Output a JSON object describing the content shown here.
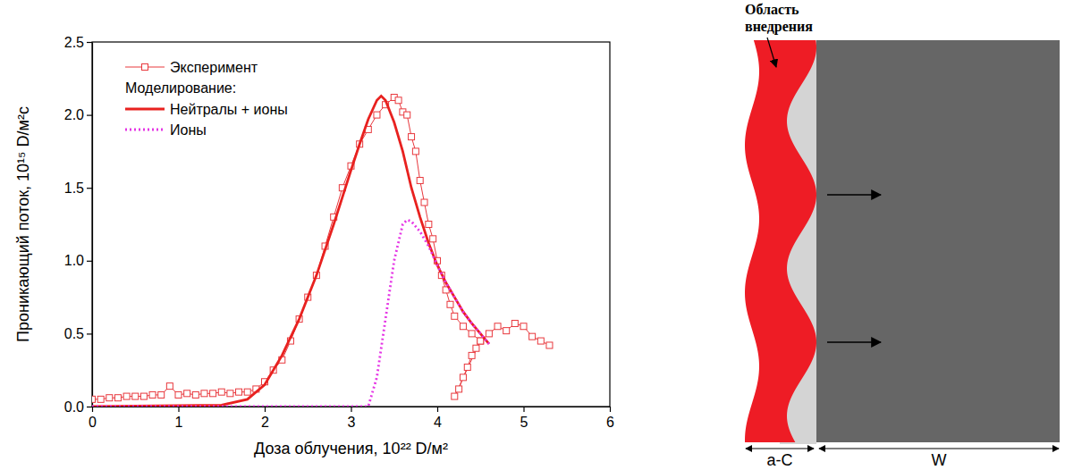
{
  "chart_data": {
    "type": "line",
    "x_label": "Доза облучения, 10²² D/м²",
    "y_label": "Проникающий поток, 10¹⁵ D/м²с",
    "legend_subtitle": "Моделирование:",
    "legend": "upper left",
    "xlim": [
      0,
      6
    ],
    "xticks": [
      0,
      1,
      2,
      3,
      4,
      5,
      6
    ],
    "ylim": [
      0,
      2.5
    ],
    "yticks": [
      {
        "value": 0,
        "label": "0.0"
      },
      {
        "value": 0.5,
        "label": "0.5"
      },
      {
        "value": 1,
        "label": "1.0"
      },
      {
        "value": 1.5,
        "label": "1.5"
      },
      {
        "value": 2,
        "label": "2.0"
      },
      {
        "value": 2.5,
        "label": "2.5"
      }
    ],
    "series": [
      {
        "name": "Эксперимент",
        "color": "#e8383d",
        "marker": "square",
        "line_style": "solid",
        "x": [
          0,
          0.1,
          0.2,
          0.3,
          0.4,
          0.5,
          0.6,
          0.7,
          0.8,
          0.9,
          1.0,
          1.1,
          1.2,
          1.3,
          1.4,
          1.5,
          1.6,
          1.7,
          1.8,
          1.9,
          2.0,
          2.1,
          2.2,
          2.3,
          2.4,
          2.5,
          2.6,
          2.7,
          2.8,
          2.9,
          3.0,
          3.1,
          3.2,
          3.3,
          3.4,
          3.5,
          3.55,
          3.6,
          3.65,
          3.7,
          3.75,
          3.8,
          3.85,
          3.9,
          3.95,
          4.0,
          4.05,
          4.1,
          4.15,
          4.2,
          4.3,
          4.4,
          4.5,
          4.2,
          4.25,
          4.3,
          4.35,
          4.4,
          4.45,
          4.5,
          4.6,
          4.7,
          4.8,
          4.9,
          5.0,
          5.1,
          5.2,
          5.3
        ],
        "values": [
          0.05,
          0.05,
          0.06,
          0.06,
          0.07,
          0.07,
          0.07,
          0.08,
          0.08,
          0.14,
          0.08,
          0.09,
          0.08,
          0.09,
          0.09,
          0.1,
          0.09,
          0.1,
          0.1,
          0.12,
          0.17,
          0.25,
          0.32,
          0.45,
          0.6,
          0.75,
          0.9,
          1.1,
          1.3,
          1.5,
          1.65,
          1.8,
          1.9,
          2.0,
          2.07,
          2.12,
          2.1,
          2.02,
          2.0,
          1.85,
          1.75,
          1.55,
          1.4,
          1.25,
          1.15,
          1.0,
          0.9,
          0.8,
          0.7,
          0.62,
          0.55,
          0.5,
          0.45,
          0.07,
          0.12,
          0.2,
          0.27,
          0.35,
          0.4,
          0.45,
          0.5,
          0.55,
          0.52,
          0.57,
          0.55,
          0.48,
          0.45,
          0.42
        ]
      },
      {
        "name": "Нейтралы + ионы",
        "color": "#e8211f",
        "line_style": "solid",
        "x": [
          0,
          1.5,
          1.8,
          2.0,
          2.2,
          2.4,
          2.6,
          2.8,
          3.0,
          3.1,
          3.2,
          3.3,
          3.35,
          3.4,
          3.5,
          3.6,
          3.7,
          3.8,
          3.9,
          4.0,
          4.1,
          4.2,
          4.3,
          4.4,
          4.5,
          4.6
        ],
        "values": [
          0,
          0.01,
          0.05,
          0.15,
          0.35,
          0.6,
          0.9,
          1.25,
          1.62,
          1.8,
          1.97,
          2.1,
          2.13,
          2.1,
          1.95,
          1.75,
          1.5,
          1.3,
          1.12,
          0.97,
          0.85,
          0.75,
          0.65,
          0.57,
          0.5,
          0.43
        ]
      },
      {
        "name": "Ионы",
        "color": "#e535e5",
        "line_style": "dotted",
        "x": [
          0,
          3.2,
          3.3,
          3.4,
          3.5,
          3.6,
          3.65,
          3.7,
          3.8,
          3.9,
          4.0,
          4.1,
          4.2,
          4.3,
          4.4,
          4.5,
          4.6
        ],
        "values": [
          0,
          0,
          0.2,
          0.6,
          1.0,
          1.25,
          1.28,
          1.27,
          1.2,
          1.1,
          0.97,
          0.85,
          0.75,
          0.65,
          0.57,
          0.5,
          0.43
        ]
      }
    ]
  },
  "diagram": {
    "callout": "Область внедрения",
    "layers": [
      "a-C",
      "W"
    ]
  }
}
